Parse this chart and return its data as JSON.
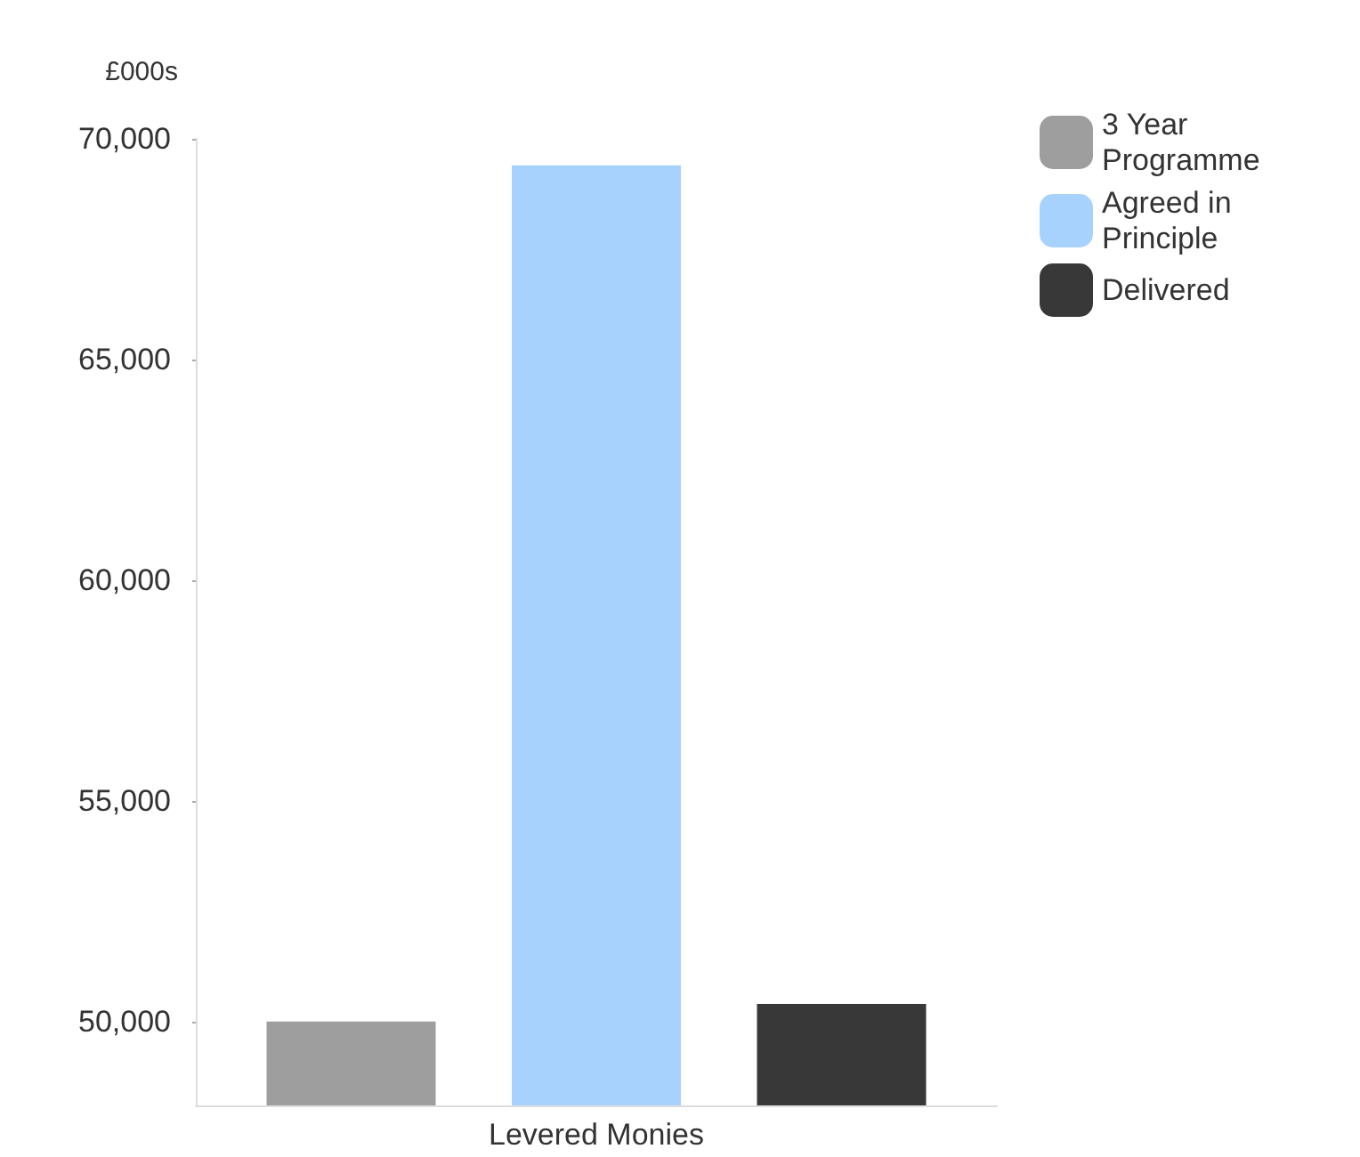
{
  "chart_data": {
    "type": "bar",
    "ylabel": "£000s",
    "categories": [
      "Levered Monies"
    ],
    "series": [
      {
        "name": "3 Year Programme",
        "color": "#9e9e9e",
        "values": [
          50000
        ]
      },
      {
        "name": "Agreed in Principle",
        "color": "#a8d2fe",
        "values": [
          69400
        ]
      },
      {
        "name": "Delivered",
        "color": "#383838",
        "values": [
          50400
        ]
      }
    ],
    "ylim": [
      48100,
      70000
    ],
    "yticks": [
      {
        "value": 50000,
        "label": "50,000"
      },
      {
        "value": 55000,
        "label": "55,000"
      },
      {
        "value": 60000,
        "label": "60,000"
      },
      {
        "value": 65000,
        "label": "65,000"
      },
      {
        "value": 70000,
        "label": "70,000"
      }
    ],
    "grid": false,
    "legend": "top right"
  }
}
